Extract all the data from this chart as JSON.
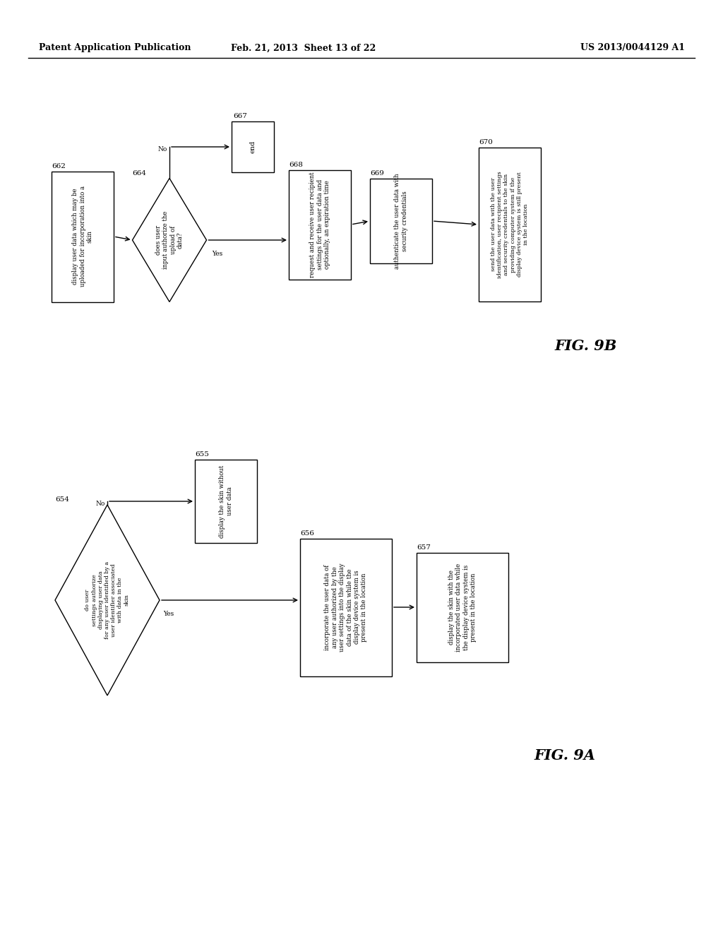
{
  "header_left": "Patent Application Publication",
  "header_mid": "Feb. 21, 2013  Sheet 13 of 22",
  "header_right": "US 2013/0044129 A1",
  "fig_b_label": "FIG. 9B",
  "fig_a_label": "FIG. 9A",
  "background": "#ffffff"
}
